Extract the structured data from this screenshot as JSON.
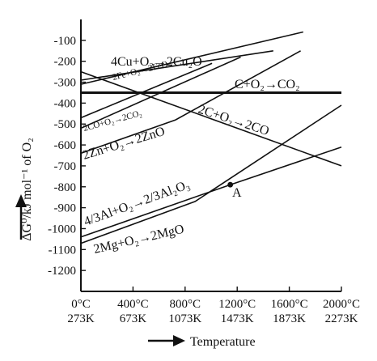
{
  "chart_data": {
    "type": "line",
    "title": "",
    "xlabel": "Temperature",
    "ylabel": "ΔG°/kJ mol⁻¹ of O₂",
    "xlim": [
      273,
      2273
    ],
    "ylim": [
      -1300,
      0
    ],
    "grid": false,
    "x_ticks": [
      {
        "value": 273,
        "celsius": "0°C",
        "kelvin": "273K"
      },
      {
        "value": 673,
        "celsius": "400°C",
        "kelvin": "673K"
      },
      {
        "value": 1073,
        "celsius": "800°C",
        "kelvin": "1073K"
      },
      {
        "value": 1473,
        "celsius": "1200°C",
        "kelvin": "1473K"
      },
      {
        "value": 1873,
        "celsius": "1600°C",
        "kelvin": "1873K"
      },
      {
        "value": 2273,
        "celsius": "2000°C",
        "kelvin": "2273K"
      }
    ],
    "y_ticks": [
      "-100",
      "-200",
      "-300",
      "-400",
      "-500",
      "-600",
      "-700",
      "-800",
      "-900",
      "-1000",
      "-1100",
      "-1200"
    ],
    "y_tick_values": [
      -100,
      -200,
      -300,
      -400,
      -500,
      -600,
      -700,
      -800,
      -900,
      -1000,
      -1100,
      -1200
    ],
    "series": [
      {
        "name": "4Cu+O2→2Cu2O",
        "points": [
          [
            273,
            -310
          ],
          [
            1980,
            -60
          ]
        ]
      },
      {
        "name": "2Fe+O2→2FeO",
        "points": [
          [
            273,
            -470
          ],
          [
            1280,
            -210
          ]
        ]
      },
      {
        "name": "C+O2→CO2",
        "points": [
          [
            273,
            -350
          ],
          [
            2273,
            -350
          ]
        ]
      },
      {
        "name": "2CO+O2→2CO2",
        "points": [
          [
            273,
            -520
          ],
          [
            1500,
            -180
          ]
        ]
      },
      {
        "name": "2C+O2→2CO",
        "points": [
          [
            273,
            -250
          ],
          [
            2273,
            -700
          ]
        ]
      },
      {
        "name": "2Zn+O2→2ZnO",
        "points": [
          [
            273,
            -640
          ],
          [
            1000,
            -480
          ],
          [
            1960,
            -150
          ]
        ]
      },
      {
        "name": "4/3Al+O2→2/3Al2O3",
        "points": [
          [
            273,
            -1040
          ],
          [
            1420,
            -790
          ],
          [
            2273,
            -610
          ]
        ]
      },
      {
        "name": "2Mg+O2→2MgO",
        "points": [
          [
            273,
            -1070
          ],
          [
            1150,
            -870
          ],
          [
            2273,
            -410
          ]
        ]
      },
      {
        "name": "",
        "points": [
          [
            273,
            -290
          ],
          [
            1750,
            -150
          ]
        ]
      }
    ],
    "annotations": [
      {
        "text": "A",
        "x": 1420,
        "y": -790
      }
    ],
    "x_axis_arrow_label": "Temperature"
  },
  "labels": {
    "cu": "4Cu+O₂→2Cu₂O",
    "fe": "2Fe+O₂→2FeO",
    "c_co2": "C+O₂→CO₂",
    "co_co2": "2CO+O₂→2CO₂",
    "c_co": "2C+O₂→2CO",
    "zn": "2Zn+O₂→2ZnO",
    "al": "4/3Al+O₂→2/3Al₂O₃",
    "mg": "2Mg+O₂→2MgO",
    "point_a": "A",
    "y_title": "ΔG⁰/kJ mol⁻¹ of O₂",
    "x_title": "Temperature"
  },
  "colors": {
    "line": "#111111",
    "background": "#ffffff"
  }
}
